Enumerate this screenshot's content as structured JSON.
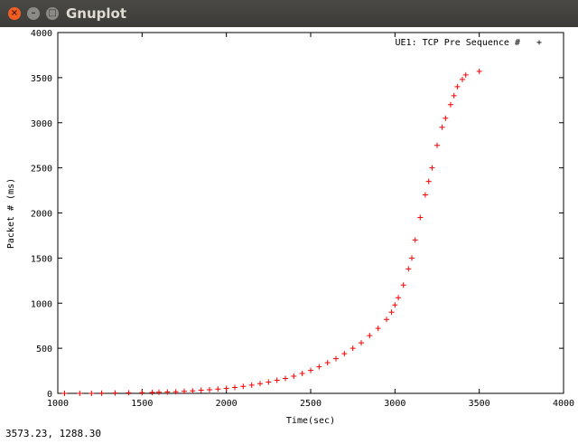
{
  "window": {
    "title": "Gnuplot",
    "close_glyph": "×",
    "min_glyph": "–",
    "max_glyph": "□"
  },
  "status": {
    "coordinates": "3573.23,  1288.30"
  },
  "chart_data": {
    "type": "scatter",
    "title": "",
    "xlabel": "Time(sec)",
    "ylabel": "Packet # (ms)",
    "xlim": [
      1000,
      4000
    ],
    "ylim": [
      0,
      4000
    ],
    "xticks": [
      1000,
      1500,
      2000,
      2500,
      3000,
      3500,
      4000
    ],
    "yticks": [
      0,
      500,
      1000,
      1500,
      2000,
      2500,
      3000,
      3500,
      4000
    ],
    "legend_position": "top-right",
    "marker": "+",
    "color": "#ff0000",
    "series": [
      {
        "name": "UE1: TCP Pre Sequence #",
        "x": [
          1040,
          1130,
          1200,
          1260,
          1340,
          1420,
          1500,
          1560,
          1600,
          1650,
          1700,
          1750,
          1800,
          1850,
          1900,
          1950,
          2000,
          2050,
          2100,
          2150,
          2200,
          2250,
          2300,
          2350,
          2400,
          2450,
          2500,
          2550,
          2600,
          2650,
          2700,
          2750,
          2800,
          2850,
          2900,
          2950,
          2980,
          3000,
          3020,
          3050,
          3080,
          3100,
          3120,
          3150,
          3180,
          3200,
          3220,
          3250,
          3280,
          3300,
          3330,
          3350,
          3370,
          3400,
          3420,
          3500
        ],
        "y": [
          0,
          0,
          0,
          2,
          4,
          6,
          8,
          10,
          12,
          15,
          18,
          22,
          28,
          35,
          40,
          48,
          55,
          65,
          78,
          92,
          108,
          125,
          145,
          165,
          190,
          220,
          255,
          295,
          340,
          385,
          440,
          500,
          560,
          640,
          720,
          820,
          900,
          980,
          1060,
          1200,
          1380,
          1500,
          1700,
          1950,
          2200,
          2350,
          2500,
          2750,
          2950,
          3050,
          3200,
          3300,
          3400,
          3480,
          3530,
          3570
        ]
      }
    ]
  }
}
